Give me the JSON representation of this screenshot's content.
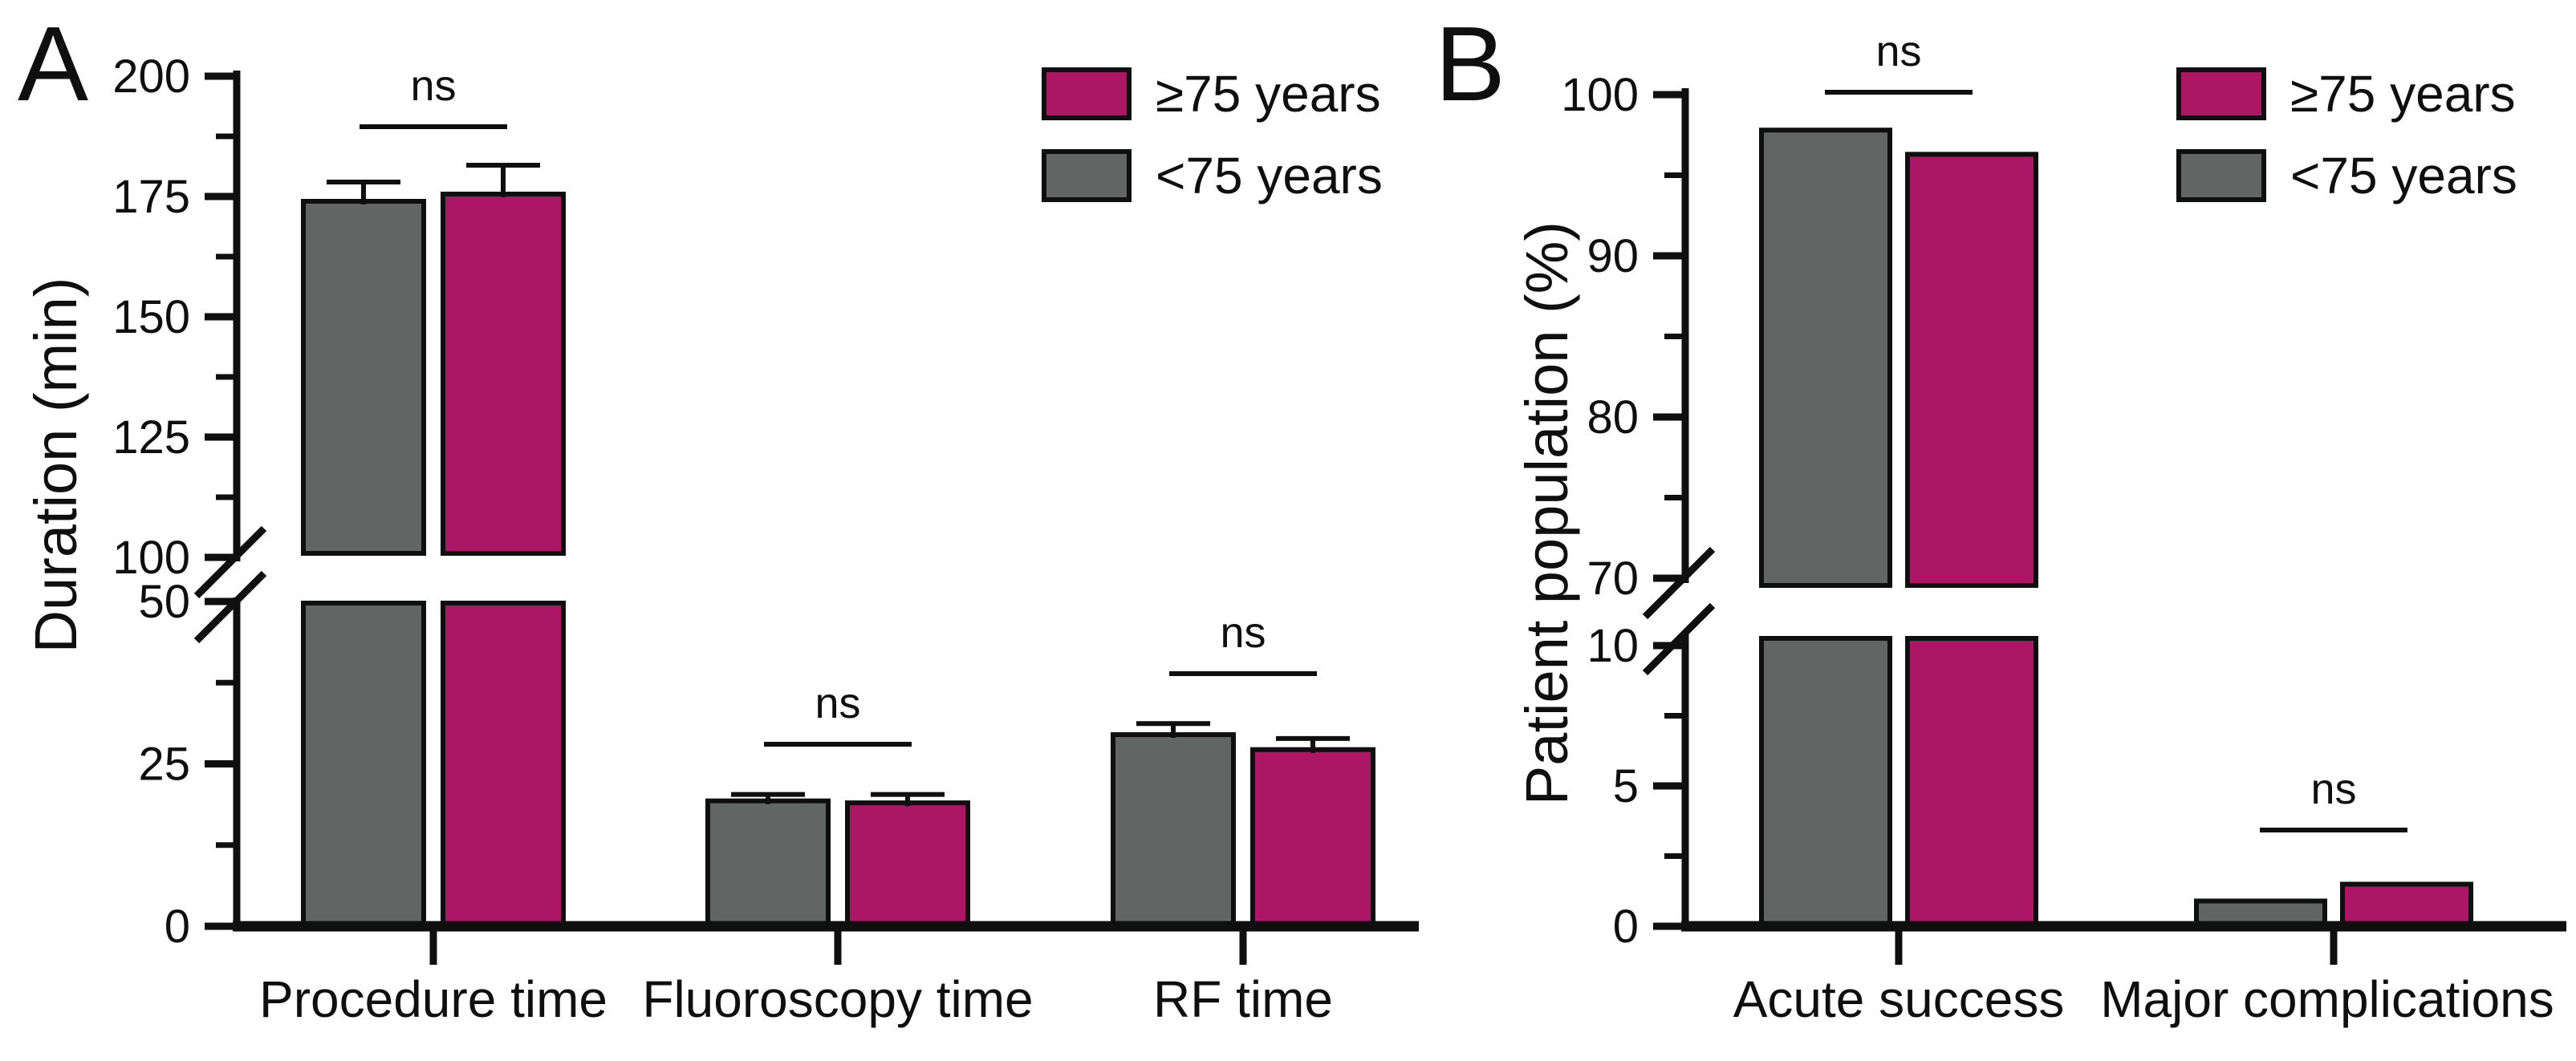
{
  "colors": {
    "younger_gray": "#636565",
    "older_magenta": "#ad1664",
    "ink": "#0f0f0f"
  },
  "chart_data": [
    {
      "type": "bar",
      "panel_label": "A",
      "title": "",
      "xlabel": "",
      "ylabel": "Duration (min)",
      "categories": [
        "Procedure time",
        "Fluoroscopy time",
        "RF time"
      ],
      "series": [
        {
          "name": "<75 years",
          "color": "#636565",
          "values": [
            174,
            19.3,
            29.5
          ],
          "errors_plus": [
            4,
            1.0,
            1.7
          ]
        },
        {
          "name": "≥75 years",
          "color": "#ad1664",
          "values": [
            175.5,
            19.0,
            27.2
          ],
          "errors_plus": [
            6,
            1.3,
            1.7
          ]
        }
      ],
      "significance": [
        "ns",
        "ns",
        "ns"
      ],
      "legend_position": "top-right",
      "grid": false,
      "y_axis": {
        "broken": true,
        "segments": [
          {
            "range": [
              0,
              50
            ],
            "major_ticks": [
              0,
              25,
              50
            ],
            "minor_ticks": [
              12.5,
              37.5
            ]
          },
          {
            "range": [
              100,
              200
            ],
            "major_ticks": [
              100,
              125,
              150,
              175,
              200
            ],
            "minor_ticks": [
              112.5,
              137.5,
              162.5,
              187.5
            ]
          }
        ]
      }
    },
    {
      "type": "bar",
      "panel_label": "B",
      "title": "",
      "xlabel": "",
      "ylabel": "Patient population (%)",
      "categories": [
        "Acute success",
        "Major complications"
      ],
      "series": [
        {
          "name": "<75 years",
          "color": "#636565",
          "values": [
            97.8,
            0.9
          ],
          "errors_plus": [
            0,
            0
          ]
        },
        {
          "name": "≥75 years",
          "color": "#ad1664",
          "values": [
            96.3,
            1.5
          ],
          "errors_plus": [
            0,
            0
          ]
        }
      ],
      "significance": [
        "ns",
        "ns"
      ],
      "legend_position": "top-right",
      "grid": false,
      "y_axis": {
        "broken": true,
        "segments": [
          {
            "range": [
              0,
              10
            ],
            "major_ticks": [
              0,
              5,
              10
            ],
            "minor_ticks": [
              2.5,
              7.5
            ]
          },
          {
            "range": [
              70,
              100
            ],
            "major_ticks": [
              70,
              80,
              90,
              100
            ],
            "minor_ticks": [
              75,
              85,
              95
            ]
          }
        ]
      }
    }
  ]
}
